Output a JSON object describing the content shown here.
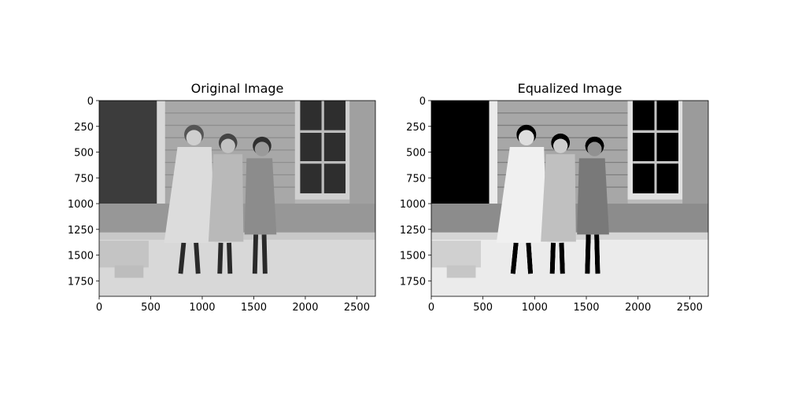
{
  "chart_data": [
    {
      "type": "image",
      "title": "Original Image",
      "xlim": [
        0,
        2680
      ],
      "xticks": [
        0,
        500,
        1000,
        1500,
        2000,
        2500
      ],
      "ylim": [
        1900,
        0
      ],
      "yticks": [
        0,
        250,
        500,
        750,
        1000,
        1250,
        1500,
        1750
      ]
    },
    {
      "type": "image",
      "title": "Equalized Image",
      "xlim": [
        0,
        2680
      ],
      "xticks": [
        0,
        500,
        1000,
        1500,
        2000,
        2500
      ],
      "ylim": [
        1900,
        0
      ],
      "yticks": [
        0,
        250,
        500,
        750,
        1000,
        1250,
        1500,
        1750
      ]
    }
  ]
}
